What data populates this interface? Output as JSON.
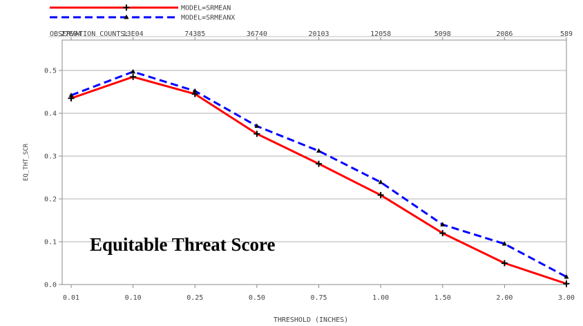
{
  "chart_data": {
    "type": "line",
    "title": "Equitable Threat Score",
    "xlabel": "THRESHOLD (INCHES)",
    "ylabel": "EQ_THT_SCR",
    "categories": [
      "0.01",
      "0.10",
      "0.25",
      "0.50",
      "0.75",
      "1.00",
      "1.50",
      "2.00",
      "3.00"
    ],
    "y_ticks": [
      "0.0",
      "0.1",
      "0.2",
      "0.3",
      "0.4",
      "0.5"
    ],
    "ylim": [
      0,
      0.5
    ],
    "grid": "horizontal",
    "observation_counts_label": "OBSERVATION COUNTS:",
    "observation_counts": [
      "27E04",
      "13E04",
      "74385",
      "36740",
      "20103",
      "12058",
      "5098",
      "2086",
      "589"
    ],
    "series": [
      {
        "name": "MODEL=SRMEAN",
        "color": "#ff0000",
        "style": "solid",
        "marker": "plus",
        "values": [
          0.435,
          0.485,
          0.445,
          0.352,
          0.282,
          0.209,
          0.12,
          0.05,
          0.002
        ]
      },
      {
        "name": "MODEL=SRMEANX",
        "color": "#0000ff",
        "style": "dashed",
        "marker": "triangle",
        "values": [
          0.442,
          0.497,
          0.452,
          0.37,
          0.312,
          0.239,
          0.14,
          0.095,
          0.018
        ]
      }
    ],
    "legend_position": "top-left"
  }
}
